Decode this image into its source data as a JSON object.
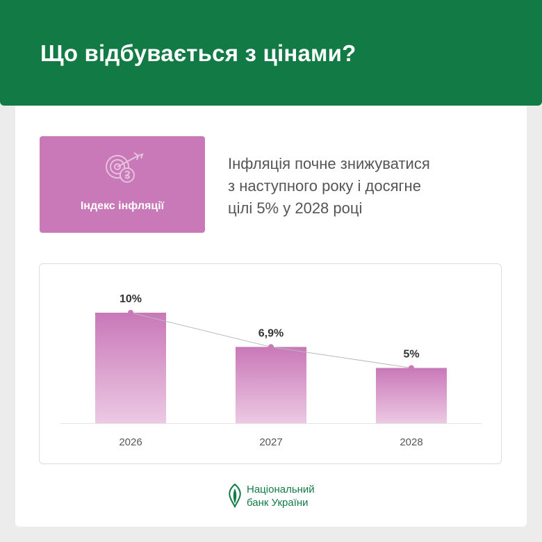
{
  "header": {
    "title": "Що відбувається з цінами?"
  },
  "badge": {
    "label": "Індекс інфляції",
    "icon": "target-hryvnia-icon"
  },
  "description": {
    "lines": [
      "Інфляція почне знижуватися",
      "з наступного року і досягне",
      "цілі 5% у 2028 році"
    ]
  },
  "chart_data": {
    "type": "bar",
    "categories": [
      "2026",
      "2027",
      "2028"
    ],
    "values": [
      10,
      6.9,
      5
    ],
    "data_labels": [
      "10%",
      "6,9%",
      "5%"
    ],
    "overlay_line": true,
    "ylim": [
      0,
      10
    ],
    "grid": false,
    "colors": {
      "bar_top": "#c978b8",
      "bar_bottom": "#ecc9e3",
      "line": "#b9b9b9",
      "point": "#c978b8"
    }
  },
  "footer": {
    "line1": "Національний",
    "line2": "банк України"
  },
  "colors": {
    "brand_green": "#117a45",
    "accent_pink": "#c978b8"
  }
}
